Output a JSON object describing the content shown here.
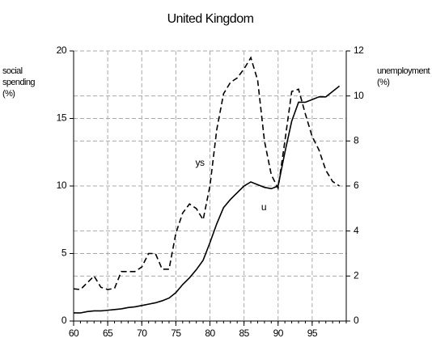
{
  "chart_data": {
    "type": "line",
    "title": "United Kingdom",
    "ylabel": "social spending (%)",
    "y2label": "unemployment (%)",
    "x": [
      60,
      61,
      62,
      63,
      64,
      65,
      66,
      67,
      68,
      69,
      70,
      71,
      72,
      73,
      74,
      75,
      76,
      77,
      78,
      79,
      80,
      81,
      82,
      83,
      84,
      85,
      86,
      87,
      88,
      89,
      90,
      91,
      92,
      93,
      94,
      95,
      96,
      97,
      98,
      99
    ],
    "series": [
      {
        "name": "ys",
        "color": "#000000",
        "dash": true,
        "axis": "y2",
        "values": [
          1.43,
          1.4,
          1.7,
          2.0,
          1.5,
          1.4,
          1.45,
          2.2,
          2.2,
          2.2,
          2.4,
          3.0,
          3.0,
          2.3,
          2.3,
          3.9,
          4.8,
          5.2,
          5.0,
          4.5,
          6.0,
          8.5,
          10.1,
          10.6,
          10.8,
          11.2,
          11.7,
          10.7,
          8.0,
          6.5,
          5.9,
          8.0,
          10.2,
          10.3,
          9.2,
          8.2,
          7.6,
          6.7,
          6.2,
          6.0
        ]
      },
      {
        "name": "u",
        "color": "#000000",
        "dash": false,
        "values": [
          0.6,
          0.6,
          0.7,
          0.75,
          0.75,
          0.8,
          0.85,
          0.9,
          1.0,
          1.05,
          1.15,
          1.25,
          1.35,
          1.5,
          1.7,
          2.1,
          2.7,
          3.2,
          3.8,
          4.5,
          5.8,
          7.2,
          8.4,
          9.0,
          9.5,
          10.0,
          10.3,
          10.1,
          9.9,
          9.8,
          10.0,
          12.5,
          14.8,
          16.2,
          16.2,
          16.4,
          16.6,
          16.6,
          17.0,
          17.4
        ]
      }
    ],
    "xlim": [
      60,
      100
    ],
    "xticks": [
      60,
      65,
      70,
      75,
      80,
      85,
      90,
      95
    ],
    "ylim": [
      0,
      20
    ],
    "yticks": [
      0,
      5,
      10,
      15,
      20
    ],
    "y2lim": [
      0,
      12
    ],
    "y2ticks": [
      0,
      2,
      4,
      6,
      8,
      10,
      12
    ],
    "grid": true
  }
}
